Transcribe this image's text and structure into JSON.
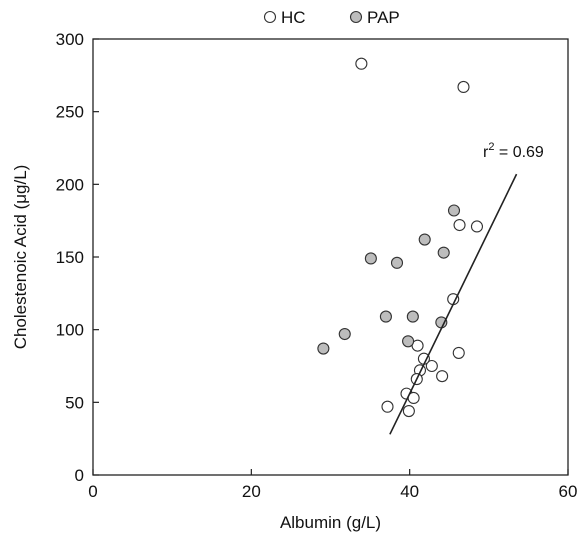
{
  "chart_data": {
    "type": "scatter",
    "xlabel": "Albumin (g/L)",
    "ylabel": "Cholestenoic Acid (μg/L)",
    "xlim": [
      0,
      60
    ],
    "ylim": [
      0,
      300
    ],
    "x_ticks": [
      0,
      20,
      40,
      60
    ],
    "y_ticks": [
      0,
      50,
      100,
      150,
      200,
      250,
      300
    ],
    "grid": false,
    "legend_position": "top",
    "series": [
      {
        "name": "HC",
        "marker": "open-circle",
        "color": "#ffffff",
        "edge_color": "#333333",
        "points": [
          {
            "x": 33.9,
            "y": 283
          },
          {
            "x": 46.8,
            "y": 267
          },
          {
            "x": 48.5,
            "y": 171
          },
          {
            "x": 46.3,
            "y": 172
          },
          {
            "x": 45.5,
            "y": 121
          },
          {
            "x": 46.2,
            "y": 84
          },
          {
            "x": 44.1,
            "y": 68
          },
          {
            "x": 42.8,
            "y": 75
          },
          {
            "x": 41.8,
            "y": 80
          },
          {
            "x": 41.3,
            "y": 72
          },
          {
            "x": 40.9,
            "y": 66
          },
          {
            "x": 39.6,
            "y": 56
          },
          {
            "x": 40.5,
            "y": 53
          },
          {
            "x": 39.9,
            "y": 44
          },
          {
            "x": 37.2,
            "y": 47
          },
          {
            "x": 41.0,
            "y": 89
          }
        ]
      },
      {
        "name": "PAP",
        "marker": "shaded-circle",
        "color": "#bdbdbd",
        "edge_color": "#333333",
        "points": [
          {
            "x": 45.6,
            "y": 182
          },
          {
            "x": 41.9,
            "y": 162
          },
          {
            "x": 44.3,
            "y": 153
          },
          {
            "x": 35.1,
            "y": 149
          },
          {
            "x": 38.4,
            "y": 146
          },
          {
            "x": 37.0,
            "y": 109
          },
          {
            "x": 40.4,
            "y": 109
          },
          {
            "x": 44.0,
            "y": 105
          },
          {
            "x": 31.8,
            "y": 97
          },
          {
            "x": 29.1,
            "y": 87
          },
          {
            "x": 39.8,
            "y": 92
          }
        ]
      }
    ],
    "regression_line": {
      "x": [
        37.5,
        53.5
      ],
      "y": [
        28,
        207
      ]
    },
    "annotations": [
      {
        "text_base": "r",
        "text_sup": "2",
        "text_rest": " = 0.69"
      }
    ]
  }
}
